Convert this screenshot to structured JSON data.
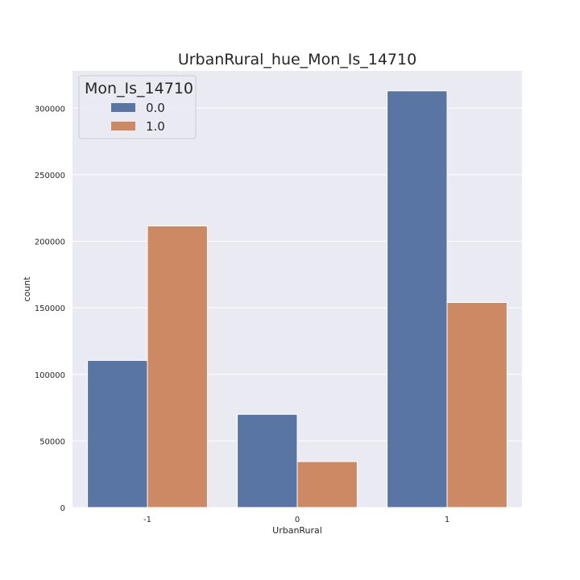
{
  "chart_data": {
    "type": "bar",
    "title": "UrbanRural_hue_Mon_Is_14710",
    "xlabel": "UrbanRural",
    "ylabel": "count",
    "categories": [
      "-1",
      "0",
      "1"
    ],
    "series": [
      {
        "name": "0.0",
        "color": "#5875a4",
        "values": [
          110500,
          70000,
          313000
        ]
      },
      {
        "name": "1.0",
        "color": "#cc8963",
        "values": [
          211500,
          34500,
          154000
        ]
      }
    ],
    "ylim": [
      0,
      328000
    ],
    "yticks": [
      0,
      50000,
      100000,
      150000,
      200000,
      250000,
      300000
    ],
    "ytick_labels": [
      "0",
      "50000",
      "100000",
      "150000",
      "200000",
      "250000",
      "300000"
    ],
    "grid": true,
    "legend": {
      "title": "Mon_Is_14710",
      "placement": "top-left"
    },
    "colors": {
      "plot_background": "#eaeaf2",
      "grid": "#ffffff",
      "text": "#262626"
    }
  }
}
